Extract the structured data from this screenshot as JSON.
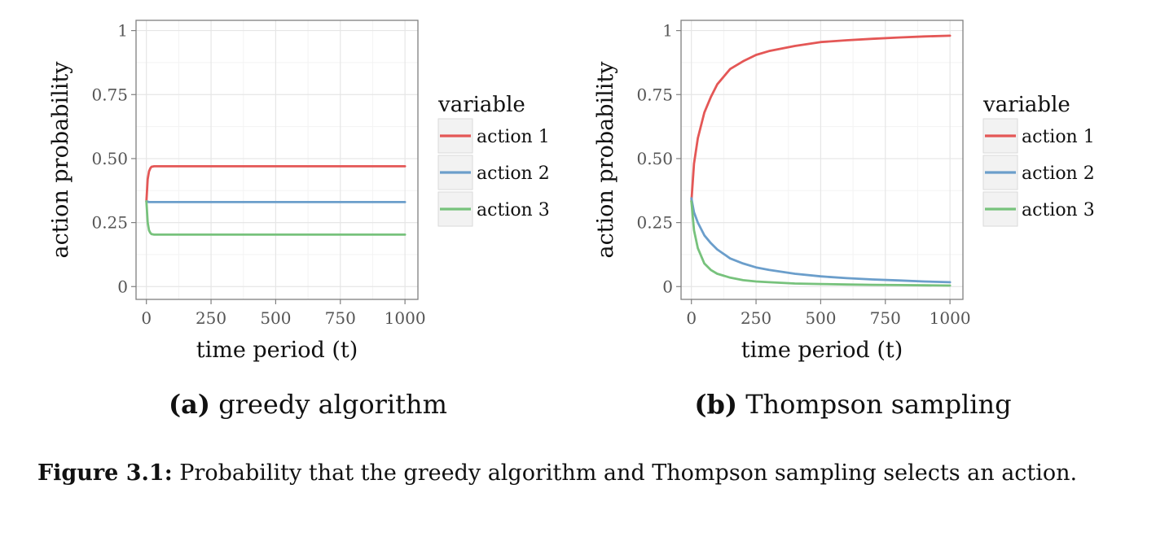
{
  "chart_data": [
    {
      "type": "line",
      "panel_tag": "(a)",
      "panel_label": "greedy algorithm",
      "xlabel": "time period (t)",
      "ylabel": "action probability",
      "xlim": [
        -40,
        1050
      ],
      "ylim": [
        -0.05,
        1.04
      ],
      "x_ticks": [
        "0",
        "250",
        "500",
        "750",
        "1000"
      ],
      "y_ticks": [
        "0",
        "0.25",
        "0.50",
        "0.75",
        "1"
      ],
      "legend_title": "variable",
      "legend_position": "right",
      "grid": true,
      "series": [
        {
          "name": "action 1",
          "color": "#e45756",
          "x": [
            0,
            5,
            10,
            15,
            20,
            30,
            50,
            100,
            250,
            500,
            750,
            1000
          ],
          "values": [
            0.333,
            0.42,
            0.45,
            0.462,
            0.468,
            0.47,
            0.47,
            0.47,
            0.47,
            0.47,
            0.47,
            0.47
          ]
        },
        {
          "name": "action 2",
          "color": "#6b9ecb",
          "x": [
            0,
            10,
            50,
            250,
            500,
            750,
            1000
          ],
          "values": [
            0.333,
            0.33,
            0.33,
            0.33,
            0.33,
            0.33,
            0.33
          ]
        },
        {
          "name": "action 3",
          "color": "#77c27c",
          "x": [
            0,
            5,
            10,
            15,
            20,
            30,
            50,
            100,
            250,
            500,
            750,
            1000
          ],
          "values": [
            0.333,
            0.25,
            0.22,
            0.21,
            0.205,
            0.203,
            0.203,
            0.203,
            0.203,
            0.203,
            0.203,
            0.203
          ]
        }
      ]
    },
    {
      "type": "line",
      "panel_tag": "(b)",
      "panel_label": "Thompson sampling",
      "xlabel": "time period (t)",
      "ylabel": "action probability",
      "xlim": [
        -40,
        1050
      ],
      "ylim": [
        -0.05,
        1.04
      ],
      "x_ticks": [
        "0",
        "250",
        "500",
        "750",
        "1000"
      ],
      "y_ticks": [
        "0",
        "0.25",
        "0.50",
        "0.75",
        "1"
      ],
      "legend_title": "variable",
      "legend_position": "right",
      "grid": true,
      "series": [
        {
          "name": "action 1",
          "color": "#e45756",
          "x": [
            0,
            10,
            25,
            50,
            75,
            100,
            150,
            200,
            250,
            300,
            400,
            500,
            600,
            700,
            800,
            900,
            1000
          ],
          "values": [
            0.333,
            0.48,
            0.58,
            0.68,
            0.74,
            0.79,
            0.85,
            0.88,
            0.905,
            0.92,
            0.94,
            0.955,
            0.962,
            0.968,
            0.973,
            0.977,
            0.98
          ]
        },
        {
          "name": "action 2",
          "color": "#6b9ecb",
          "x": [
            0,
            10,
            25,
            50,
            75,
            100,
            150,
            200,
            250,
            300,
            400,
            500,
            600,
            700,
            800,
            900,
            1000
          ],
          "values": [
            0.345,
            0.29,
            0.25,
            0.2,
            0.17,
            0.145,
            0.11,
            0.09,
            0.075,
            0.065,
            0.05,
            0.04,
            0.033,
            0.028,
            0.024,
            0.02,
            0.017
          ]
        },
        {
          "name": "action 3",
          "color": "#77c27c",
          "x": [
            0,
            10,
            25,
            50,
            75,
            100,
            150,
            200,
            250,
            300,
            400,
            500,
            600,
            700,
            800,
            900,
            1000
          ],
          "values": [
            0.333,
            0.22,
            0.15,
            0.09,
            0.065,
            0.05,
            0.035,
            0.025,
            0.02,
            0.017,
            0.012,
            0.01,
            0.008,
            0.007,
            0.006,
            0.005,
            0.004
          ]
        }
      ]
    }
  ],
  "caption": {
    "label": "Figure 3.1:",
    "text": " Probability that the greedy algorithm and Thompson sampling selects an action."
  }
}
